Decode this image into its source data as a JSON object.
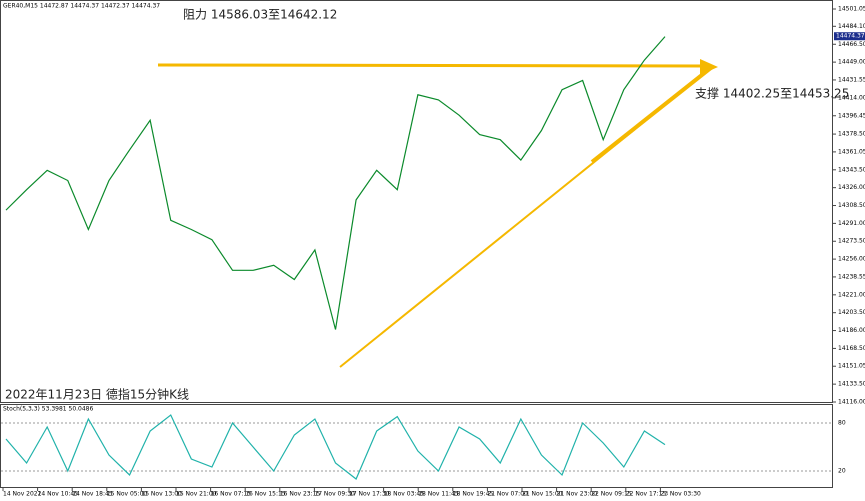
{
  "chart_data": {
    "type": "line",
    "header": "GER40,M15 14472.87 14474.37 14472.37 14474.37",
    "stoch_header": "Stoch(5,3,3) 53.3981 50.0486",
    "annotations": [
      "阻力 14586.03至14642.12",
      "支撑 14402.25至14453.25",
      "2022年11月23日 德指15分钟K线"
    ],
    "current_price": {
      "value": 14474.37,
      "label": "14474.37"
    },
    "values": [
      14304,
      14324,
      14343,
      14333,
      14285,
      14333,
      14363,
      14392,
      14294,
      14285,
      14275,
      14245,
      14245,
      14250,
      14236,
      14265,
      14187,
      14314,
      14343,
      14324,
      14417,
      14412,
      14397,
      14378,
      14373,
      14353,
      14382,
      14422,
      14431,
      14373,
      14422,
      14451,
      14474
    ],
    "color": "#0b8a2b",
    "ylim": [
      14116,
      14501.05
    ],
    "yticks": [
      14501.05,
      {
        "value": 14484.1,
        "label": "14484.10"
      },
      {
        "value": 14466.5,
        "label": "14466.50"
      },
      {
        "value": 14449,
        "label": "14449.00"
      },
      14431.55,
      {
        "value": 14414,
        "label": "14414.00"
      },
      14396.45,
      {
        "value": 14378.5,
        "label": "14378.50"
      },
      14361.05,
      {
        "value": 14343.5,
        "label": "14343.50"
      },
      {
        "value": 14326,
        "label": "14326.00"
      },
      {
        "value": 14308.5,
        "label": "14308.50"
      },
      {
        "value": 14291,
        "label": "14291.00"
      },
      {
        "value": 14273.5,
        "label": "14273.50"
      },
      {
        "value": 14256,
        "label": "14256.00"
      },
      14238.55,
      {
        "value": 14221,
        "label": "14221.00"
      },
      {
        "value": 14203.5,
        "label": "14203.50"
      },
      {
        "value": 14186,
        "label": "14186.00"
      },
      {
        "value": 14168.5,
        "label": "14168.50"
      },
      14151.05,
      {
        "value": 14133.5,
        "label": "14133.50"
      },
      {
        "value": 14116,
        "label": "14116.00"
      }
    ],
    "stoch_values": [
      60,
      30,
      75,
      20,
      85,
      40,
      15,
      70,
      90,
      35,
      25,
      80,
      50,
      20,
      65,
      85,
      30,
      10,
      70,
      88,
      45,
      20,
      75,
      60,
      30,
      85,
      40,
      15,
      80,
      55,
      25,
      70,
      53
    ],
    "stoch_color": "#20b2aa",
    "stoch_ylim": [
      0,
      100
    ],
    "stoch_yticks": [
      80,
      20
    ],
    "time_labels": [
      "14 Nov 2022",
      "14 Nov 10:45",
      "14 Nov 18:45",
      "15 Nov 05:00",
      "15 Nov 13:00",
      "15 Nov 21:00",
      "16 Nov 07:15",
      "16 Nov 15:15",
      "16 Nov 23:15",
      "17 Nov 09:30",
      "17 Nov 17:30",
      "18 Nov 03:45",
      "18 Nov 11:45",
      "18 Nov 19:45",
      "21 Nov 07:00",
      "21 Nov 15:00",
      "21 Nov 23:00",
      "22 Nov 09:15",
      "22 Nov 17:15",
      "23 Nov 03:30"
    ]
  }
}
